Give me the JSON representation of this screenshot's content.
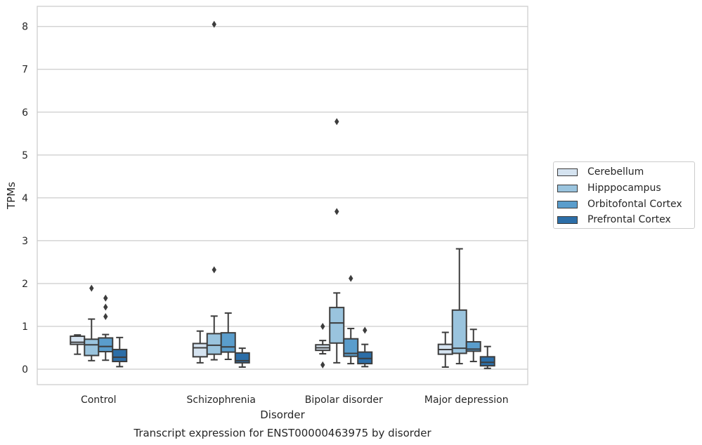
{
  "chart_data": {
    "type": "box",
    "title": "",
    "xlabel": "Disorder",
    "ylabel": "TPMs",
    "caption": "Transcript expression for ENST00000463975 by disorder",
    "ylim": [
      -0.36,
      8.47
    ],
    "yticks": [
      0,
      1,
      2,
      3,
      4,
      5,
      6,
      7,
      8
    ],
    "grid": "horizontal",
    "legend_position": "right",
    "categories": [
      "Control",
      "Schizophrenia",
      "Bipolar disorder",
      "Major depression"
    ],
    "series": [
      {
        "name": "Cerebellum",
        "color": "#d5e3f0",
        "boxes": [
          {
            "whislo": 0.35,
            "q1": 0.58,
            "med": 0.63,
            "q3": 0.77,
            "whishi": 0.8,
            "fliers": []
          },
          {
            "whislo": 0.15,
            "q1": 0.29,
            "med": 0.5,
            "q3": 0.6,
            "whishi": 0.89,
            "fliers": []
          },
          {
            "whislo": 0.36,
            "q1": 0.44,
            "med": 0.5,
            "q3": 0.57,
            "whishi": 0.67,
            "fliers": [
              1.0,
              0.1
            ]
          },
          {
            "whislo": 0.05,
            "q1": 0.35,
            "med": 0.46,
            "q3": 0.58,
            "whishi": 0.86,
            "fliers": []
          }
        ]
      },
      {
        "name": "Hipppocampus",
        "color": "#9ac4de",
        "boxes": [
          {
            "whislo": 0.2,
            "q1": 0.32,
            "med": 0.57,
            "q3": 0.7,
            "whishi": 1.17,
            "fliers": [
              1.89
            ]
          },
          {
            "whislo": 0.22,
            "q1": 0.35,
            "med": 0.56,
            "q3": 0.83,
            "whishi": 1.24,
            "fliers": [
              8.05,
              2.32
            ]
          },
          {
            "whislo": 0.15,
            "q1": 0.61,
            "med": 1.08,
            "q3": 1.44,
            "whishi": 1.78,
            "fliers": [
              5.78,
              3.68
            ]
          },
          {
            "whislo": 0.13,
            "q1": 0.37,
            "med": 0.49,
            "q3": 1.38,
            "whishi": 2.81,
            "fliers": []
          }
        ]
      },
      {
        "name": "Orbitofontal Cortex",
        "color": "#5a9dcc",
        "boxes": [
          {
            "whislo": 0.21,
            "q1": 0.41,
            "med": 0.53,
            "q3": 0.73,
            "whishi": 0.81,
            "fliers": [
              1.66,
              1.45,
              1.23
            ]
          },
          {
            "whislo": 0.23,
            "q1": 0.4,
            "med": 0.52,
            "q3": 0.85,
            "whishi": 1.31,
            "fliers": []
          },
          {
            "whislo": 0.13,
            "q1": 0.3,
            "med": 0.37,
            "q3": 0.71,
            "whishi": 0.95,
            "fliers": [
              2.12
            ]
          },
          {
            "whislo": 0.18,
            "q1": 0.42,
            "med": 0.47,
            "q3": 0.64,
            "whishi": 0.93,
            "fliers": []
          }
        ]
      },
      {
        "name": "Prefrontal Cortex",
        "color": "#2c6ea8",
        "boxes": [
          {
            "whislo": 0.06,
            "q1": 0.18,
            "med": 0.28,
            "q3": 0.46,
            "whishi": 0.74,
            "fliers": []
          },
          {
            "whislo": 0.05,
            "q1": 0.15,
            "med": 0.2,
            "q3": 0.38,
            "whishi": 0.49,
            "fliers": []
          },
          {
            "whislo": 0.06,
            "q1": 0.13,
            "med": 0.25,
            "q3": 0.4,
            "whishi": 0.58,
            "fliers": [
              0.91
            ]
          },
          {
            "whislo": 0.02,
            "q1": 0.08,
            "med": 0.16,
            "q3": 0.29,
            "whishi": 0.53,
            "fliers": []
          }
        ]
      }
    ]
  }
}
